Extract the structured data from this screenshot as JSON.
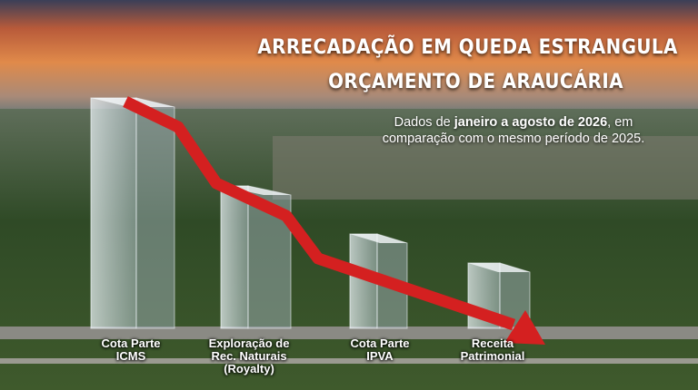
{
  "chart_data": {
    "type": "bar",
    "title_lines": [
      "ARRECADAÇÃO EM QUEDA ESTRANGULA",
      "ORÇAMENTO DE ARAUCÁRIA"
    ],
    "subtitle": [
      "Dados de ",
      "janeiro a agosto de 2026",
      ", em comparação com o mesmo período de 2025."
    ],
    "categories": [
      "Cota Parte ICMS",
      "Exploração de Rec. Naturais (Royalty)",
      "Cota Parte IPVA",
      "Receita Patrimonial"
    ],
    "values": [
      254,
      157,
      104,
      72
    ],
    "ylim": [
      0,
      260
    ],
    "color": "#c8d4dc"
  }
}
